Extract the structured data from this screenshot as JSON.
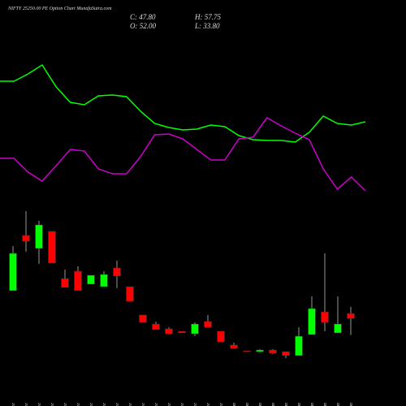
{
  "chart_data": {
    "type": "candlestick",
    "title": "NIFTY 25250.00 PE Option Chart MunafaSutra.com",
    "info": [
      "C: 47.80",
      "H: 57.75",
      "O: 52.00",
      "L: 33.80"
    ],
    "categories": [
      "08 Dec",
      "09 Dec",
      "10 Dec",
      "11 Dec",
      "12 Dec",
      "15 Dec",
      "16 Dec",
      "17 Dec",
      "18 Dec",
      "19 Dec",
      "22 Dec",
      "23 Dec",
      "24 Dec",
      "26 Dec",
      "29 Dec",
      "30 Dec",
      "31 Dec",
      "01 Jan",
      "02 Jan",
      "05 Jan",
      "06 Jan",
      "07 Jan",
      "08 Jan",
      "09 Jan",
      "12 Jan",
      "13 Jan",
      "14 Jan"
    ],
    "open": [
      71.5,
      118.4,
      107.4,
      121.9,
      81.8,
      88.0,
      77.0,
      74.9,
      90.8,
      74.9,
      50.8,
      43.2,
      39.1,
      37.0,
      34.9,
      45.3,
      37.0,
      25.3,
      20.4,
      19.7,
      21.1,
      19.7,
      16.3,
      34.2,
      53.5,
      35.6,
      52.0
    ],
    "high": [
      109.4,
      139.1,
      130.8,
      121.9,
      89.4,
      92.2,
      84.6,
      88.0,
      97.0,
      74.9,
      50.8,
      45.3,
      40.4,
      37.0,
      44.6,
      50.8,
      37.0,
      27.3,
      20.4,
      21.8,
      21.8,
      19.7,
      40.4,
      66.7,
      103.2,
      66.7,
      57.75
    ],
    "low": [
      71.5,
      104.6,
      94.3,
      94.9,
      74.2,
      71.5,
      77.0,
      74.9,
      73.6,
      62.5,
      44.6,
      38.4,
      34.2,
      35.6,
      32.8,
      40.4,
      28.0,
      22.5,
      19.7,
      19.0,
      17.7,
      14.2,
      16.3,
      34.2,
      37.0,
      35.6,
      33.8
    ],
    "close": [
      103.2,
      113.6,
      127.4,
      94.9,
      74.2,
      71.5,
      84.6,
      85.3,
      83.9,
      62.5,
      44.6,
      38.4,
      34.9,
      35.6,
      43.2,
      40.4,
      28.0,
      22.5,
      19.7,
      21.1,
      18.4,
      16.3,
      32.8,
      56.3,
      44.6,
      43.2,
      47.8
    ],
    "up_color": "#00ff00",
    "down_color": "#ff0000",
    "ylim": [
      8,
      146
    ],
    "lines": [
      {
        "color": "#00ff00",
        "axis": "y2",
        "values": [
          60,
          60,
          63.6,
          68,
          57.2,
          49.6,
          48.4,
          52.8,
          53.2,
          52.4,
          45.2,
          39.2,
          37.2,
          36,
          36.4,
          38.4,
          37.6,
          33.2,
          31.2,
          30.8,
          30.8,
          30,
          34.8,
          42.8,
          39.2,
          38.4,
          40
        ]
      },
      {
        "color": "#cc00cc",
        "axis": "y2",
        "values": [
          22,
          22,
          15.2,
          10.8,
          18.4,
          26.4,
          25.6,
          16.8,
          14.4,
          14.4,
          22.8,
          33.6,
          34,
          31.6,
          26.4,
          21.2,
          21.2,
          31.6,
          32.4,
          42,
          38,
          34.4,
          31.2,
          16.8,
          6.8,
          12.8,
          6
        ]
      }
    ],
    "y2lim": [
      0,
      100
    ]
  }
}
